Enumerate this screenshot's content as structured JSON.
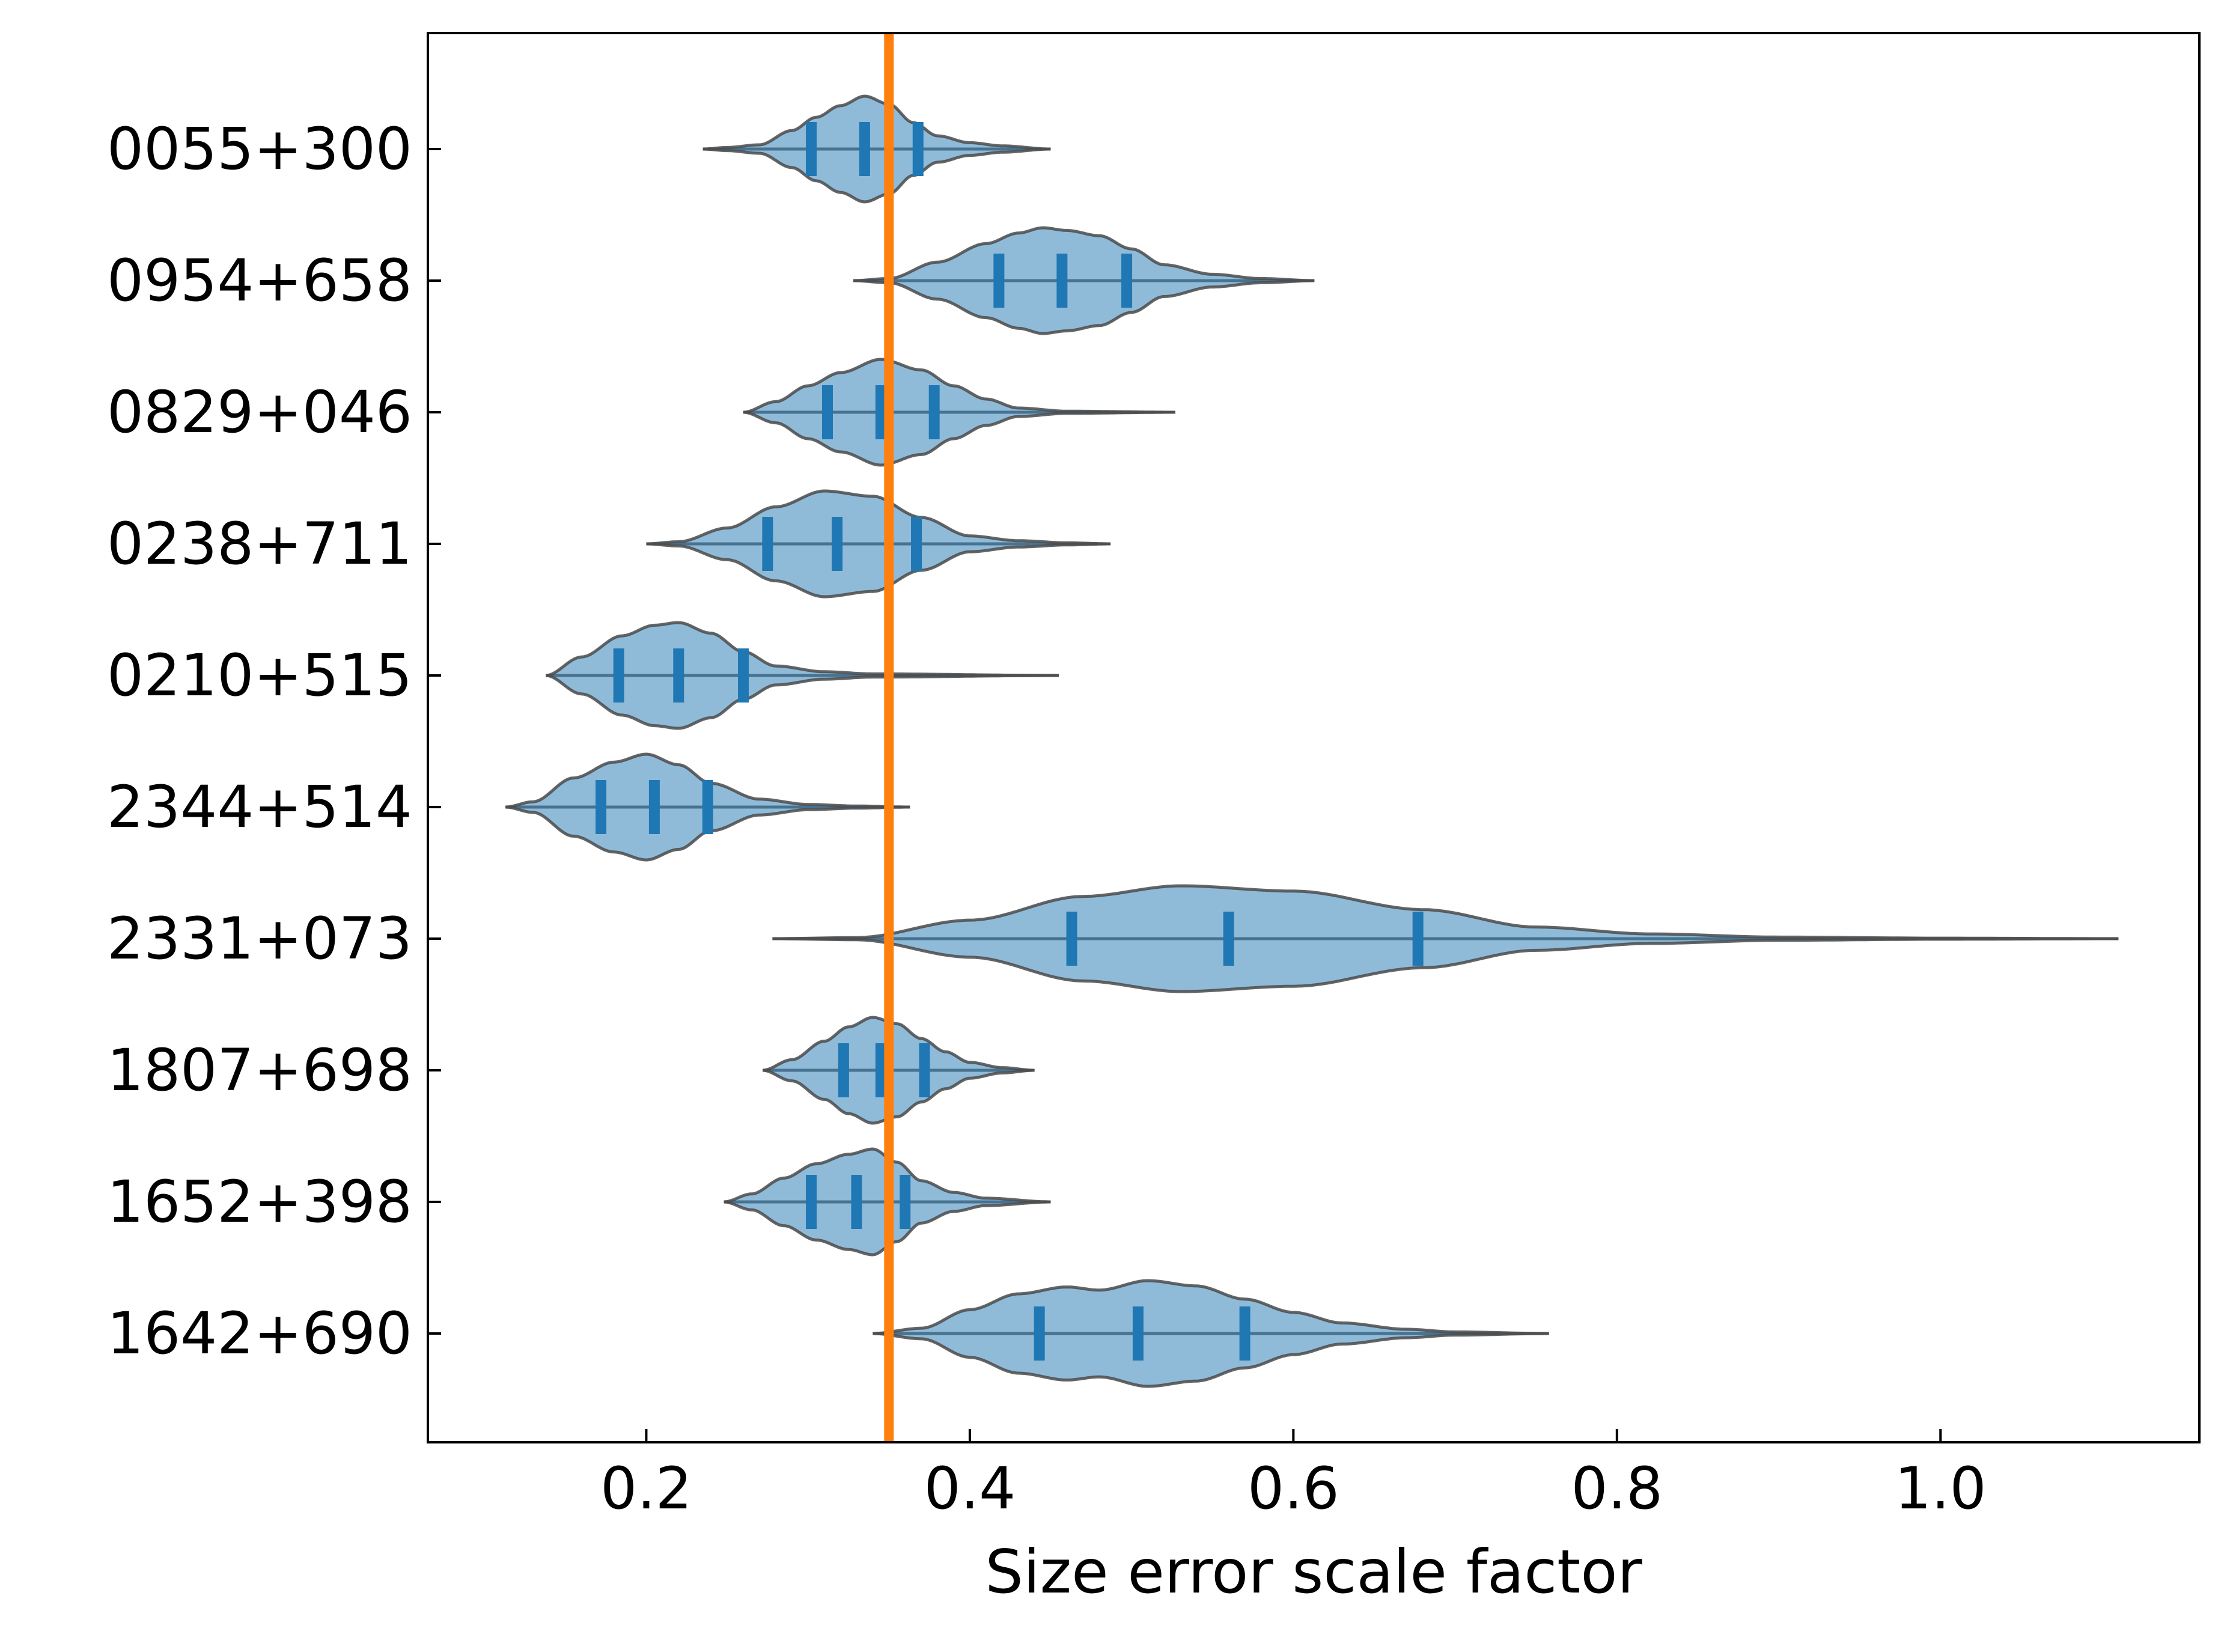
{
  "chart_data": {
    "type": "violin",
    "orientation": "horizontal",
    "xlabel": "Size error scale factor",
    "ylabel": "",
    "xlim": [
      0.065,
      1.16
    ],
    "xticks": [
      0.2,
      0.4,
      0.6,
      0.8,
      1.0
    ],
    "xtick_labels": [
      "0.2",
      "0.4",
      "0.6",
      "0.8",
      "1.0"
    ],
    "reference_line": {
      "x": 0.35,
      "color": "#ff7f0e"
    },
    "fill_color": "#1f77b4",
    "categories": [
      "0055+300",
      "0954+658",
      "0829+046",
      "0238+711",
      "0210+515",
      "2344+514",
      "2331+073",
      "1807+698",
      "1652+398",
      "1642+690"
    ],
    "series": [
      {
        "name": "0055+300",
        "min": 0.235,
        "max": 0.45,
        "q1": 0.302,
        "median": 0.335,
        "q3": 0.368,
        "density": [
          [
            0.235,
            0.0
          ],
          [
            0.25,
            0.03
          ],
          [
            0.27,
            0.08
          ],
          [
            0.29,
            0.35
          ],
          [
            0.305,
            0.6
          ],
          [
            0.32,
            0.82
          ],
          [
            0.335,
            1.0
          ],
          [
            0.35,
            0.85
          ],
          [
            0.365,
            0.5
          ],
          [
            0.38,
            0.25
          ],
          [
            0.4,
            0.12
          ],
          [
            0.42,
            0.06
          ],
          [
            0.45,
            0.0
          ]
        ]
      },
      {
        "name": "0954+658",
        "min": 0.328,
        "max": 0.613,
        "q1": 0.418,
        "median": 0.457,
        "q3": 0.497,
        "density": [
          [
            0.328,
            0.0
          ],
          [
            0.35,
            0.04
          ],
          [
            0.38,
            0.35
          ],
          [
            0.41,
            0.7
          ],
          [
            0.43,
            0.9
          ],
          [
            0.445,
            1.0
          ],
          [
            0.46,
            0.95
          ],
          [
            0.48,
            0.85
          ],
          [
            0.5,
            0.6
          ],
          [
            0.52,
            0.3
          ],
          [
            0.55,
            0.12
          ],
          [
            0.58,
            0.04
          ],
          [
            0.613,
            0.0
          ]
        ]
      },
      {
        "name": "0829+046",
        "min": 0.26,
        "max": 0.527,
        "q1": 0.312,
        "median": 0.345,
        "q3": 0.378,
        "density": [
          [
            0.26,
            0.0
          ],
          [
            0.28,
            0.2
          ],
          [
            0.3,
            0.5
          ],
          [
            0.32,
            0.75
          ],
          [
            0.345,
            1.0
          ],
          [
            0.37,
            0.8
          ],
          [
            0.39,
            0.5
          ],
          [
            0.41,
            0.25
          ],
          [
            0.43,
            0.08
          ],
          [
            0.46,
            0.02
          ],
          [
            0.527,
            0.0
          ]
        ]
      },
      {
        "name": "0238+711",
        "min": 0.2,
        "max": 0.487,
        "q1": 0.275,
        "median": 0.318,
        "q3": 0.367,
        "density": [
          [
            0.2,
            0.0
          ],
          [
            0.22,
            0.04
          ],
          [
            0.25,
            0.3
          ],
          [
            0.28,
            0.7
          ],
          [
            0.31,
            1.0
          ],
          [
            0.34,
            0.9
          ],
          [
            0.37,
            0.5
          ],
          [
            0.4,
            0.15
          ],
          [
            0.43,
            0.06
          ],
          [
            0.46,
            0.02
          ],
          [
            0.487,
            0.0
          ]
        ]
      },
      {
        "name": "0210+515",
        "min": 0.138,
        "max": 0.455,
        "q1": 0.183,
        "median": 0.22,
        "q3": 0.26,
        "density": [
          [
            0.138,
            0.0
          ],
          [
            0.16,
            0.35
          ],
          [
            0.185,
            0.75
          ],
          [
            0.205,
            0.95
          ],
          [
            0.22,
            1.0
          ],
          [
            0.24,
            0.8
          ],
          [
            0.26,
            0.45
          ],
          [
            0.28,
            0.18
          ],
          [
            0.31,
            0.07
          ],
          [
            0.34,
            0.03
          ],
          [
            0.455,
            0.0
          ]
        ]
      },
      {
        "name": "2344+514",
        "min": 0.113,
        "max": 0.363,
        "q1": 0.172,
        "median": 0.205,
        "q3": 0.238,
        "density": [
          [
            0.113,
            0.0
          ],
          [
            0.13,
            0.1
          ],
          [
            0.155,
            0.55
          ],
          [
            0.18,
            0.85
          ],
          [
            0.2,
            1.0
          ],
          [
            0.22,
            0.8
          ],
          [
            0.24,
            0.45
          ],
          [
            0.27,
            0.15
          ],
          [
            0.3,
            0.05
          ],
          [
            0.33,
            0.02
          ],
          [
            0.363,
            0.0
          ]
        ]
      },
      {
        "name": "2331+073",
        "min": 0.278,
        "max": 1.11,
        "q1": 0.463,
        "median": 0.56,
        "q3": 0.677,
        "density": [
          [
            0.278,
            0.0
          ],
          [
            0.33,
            0.02
          ],
          [
            0.4,
            0.35
          ],
          [
            0.47,
            0.8
          ],
          [
            0.53,
            1.0
          ],
          [
            0.6,
            0.9
          ],
          [
            0.68,
            0.55
          ],
          [
            0.75,
            0.22
          ],
          [
            0.82,
            0.09
          ],
          [
            0.9,
            0.03
          ],
          [
            1.0,
            0.01
          ],
          [
            1.11,
            0.0
          ]
        ]
      },
      {
        "name": "1807+698",
        "min": 0.272,
        "max": 0.44,
        "q1": 0.322,
        "median": 0.345,
        "q3": 0.372,
        "density": [
          [
            0.272,
            0.0
          ],
          [
            0.29,
            0.2
          ],
          [
            0.31,
            0.55
          ],
          [
            0.325,
            0.82
          ],
          [
            0.34,
            1.0
          ],
          [
            0.355,
            0.88
          ],
          [
            0.37,
            0.6
          ],
          [
            0.385,
            0.35
          ],
          [
            0.4,
            0.15
          ],
          [
            0.42,
            0.05
          ],
          [
            0.44,
            0.0
          ]
        ]
      },
      {
        "name": "1652+398",
        "min": 0.248,
        "max": 0.45,
        "q1": 0.302,
        "median": 0.33,
        "q3": 0.36,
        "density": [
          [
            0.248,
            0.0
          ],
          [
            0.265,
            0.15
          ],
          [
            0.285,
            0.45
          ],
          [
            0.305,
            0.72
          ],
          [
            0.325,
            0.9
          ],
          [
            0.34,
            1.0
          ],
          [
            0.355,
            0.75
          ],
          [
            0.37,
            0.4
          ],
          [
            0.39,
            0.18
          ],
          [
            0.41,
            0.07
          ],
          [
            0.45,
            0.0
          ]
        ]
      },
      {
        "name": "1642+690",
        "min": 0.34,
        "max": 0.758,
        "q1": 0.443,
        "median": 0.504,
        "q3": 0.57,
        "density": [
          [
            0.34,
            0.0
          ],
          [
            0.37,
            0.1
          ],
          [
            0.4,
            0.45
          ],
          [
            0.43,
            0.75
          ],
          [
            0.46,
            0.88
          ],
          [
            0.48,
            0.82
          ],
          [
            0.51,
            1.0
          ],
          [
            0.54,
            0.9
          ],
          [
            0.57,
            0.65
          ],
          [
            0.6,
            0.4
          ],
          [
            0.63,
            0.2
          ],
          [
            0.67,
            0.08
          ],
          [
            0.7,
            0.03
          ],
          [
            0.758,
            0.0
          ]
        ]
      }
    ]
  }
}
